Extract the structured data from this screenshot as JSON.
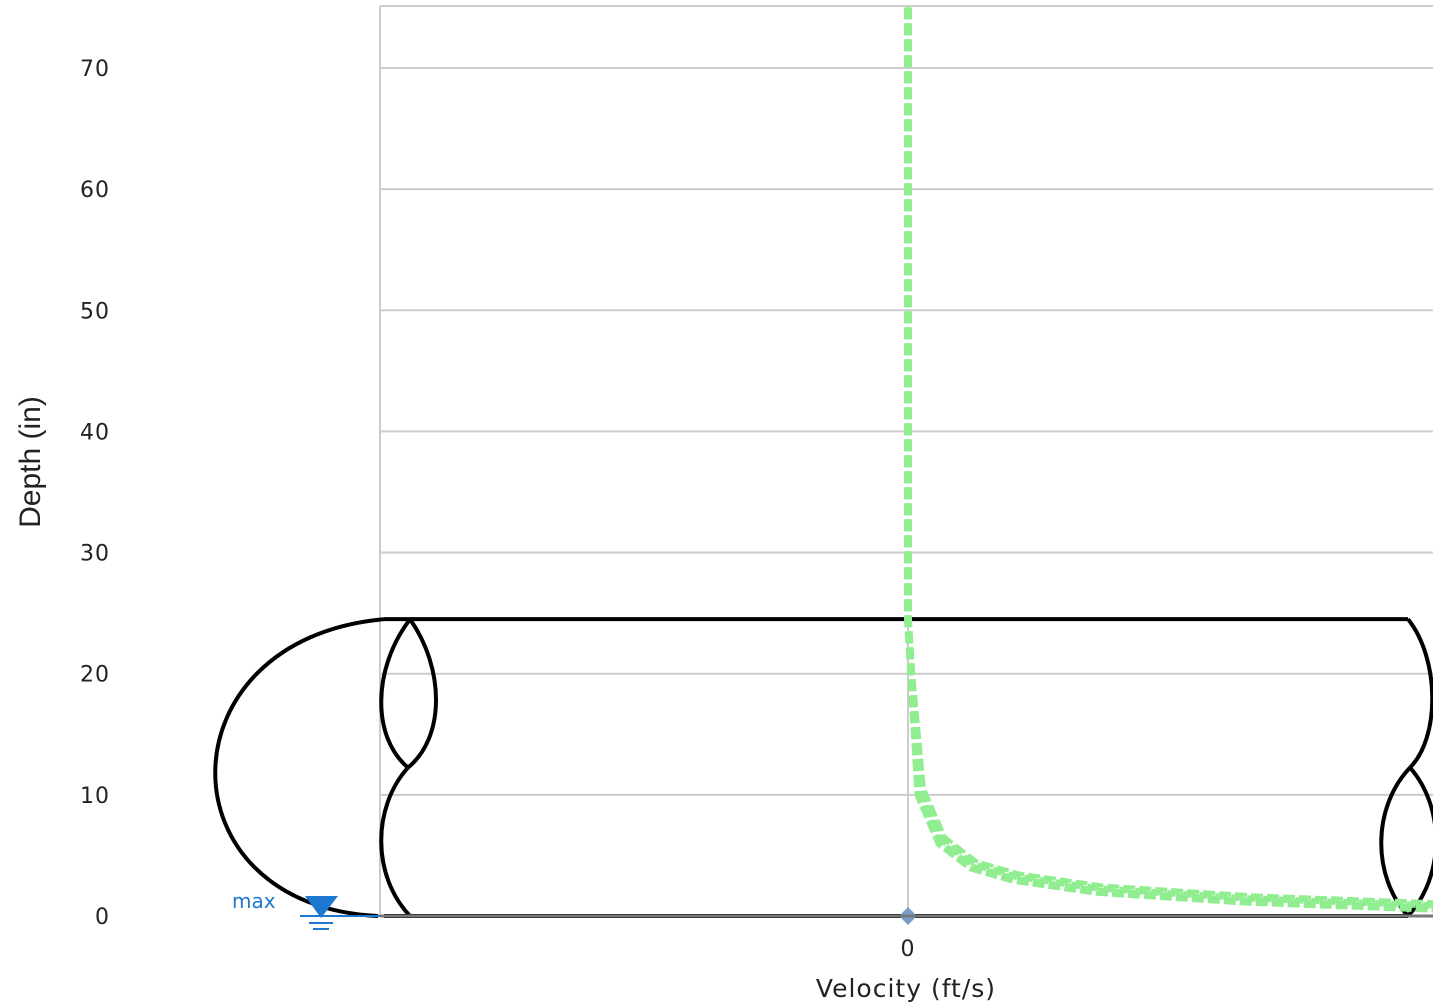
{
  "chart_data": {
    "type": "line",
    "title": "",
    "xlabel": "Velocity (ft/s)",
    "ylabel": "Depth (in)",
    "ylim": [
      0,
      75
    ],
    "y_ticks": [
      "0",
      "10",
      "20",
      "30",
      "40",
      "50",
      "60",
      "70"
    ],
    "y_tick_values": [
      0,
      10,
      20,
      30,
      40,
      50,
      60,
      70
    ],
    "x_ticks": [
      "0"
    ],
    "grid": true,
    "pipe_diameter": 24.5,
    "water_level_label": "max",
    "water_level": 0,
    "velocity_point": {
      "x": 0,
      "y": 0
    },
    "series": [
      {
        "style": "dashed",
        "color": "#90ee90",
        "points": [
          {
            "v": 0.0,
            "d": 75
          },
          {
            "v": 0.0,
            "d": 24.5
          },
          {
            "v": 0.05,
            "d": 10
          },
          {
            "v": 0.15,
            "d": 6
          },
          {
            "v": 0.3,
            "d": 4
          },
          {
            "v": 0.5,
            "d": 3
          },
          {
            "v": 0.9,
            "d": 2
          },
          {
            "v": 1.6,
            "d": 1.2
          },
          {
            "v": 2.5,
            "d": 0.6
          }
        ]
      }
    ],
    "colors": {
      "grid": "#cccccc",
      "pipe": "#000000",
      "velocity": "#90ee90",
      "water": "#1e78d0",
      "marker": "#7a9cc9"
    }
  }
}
